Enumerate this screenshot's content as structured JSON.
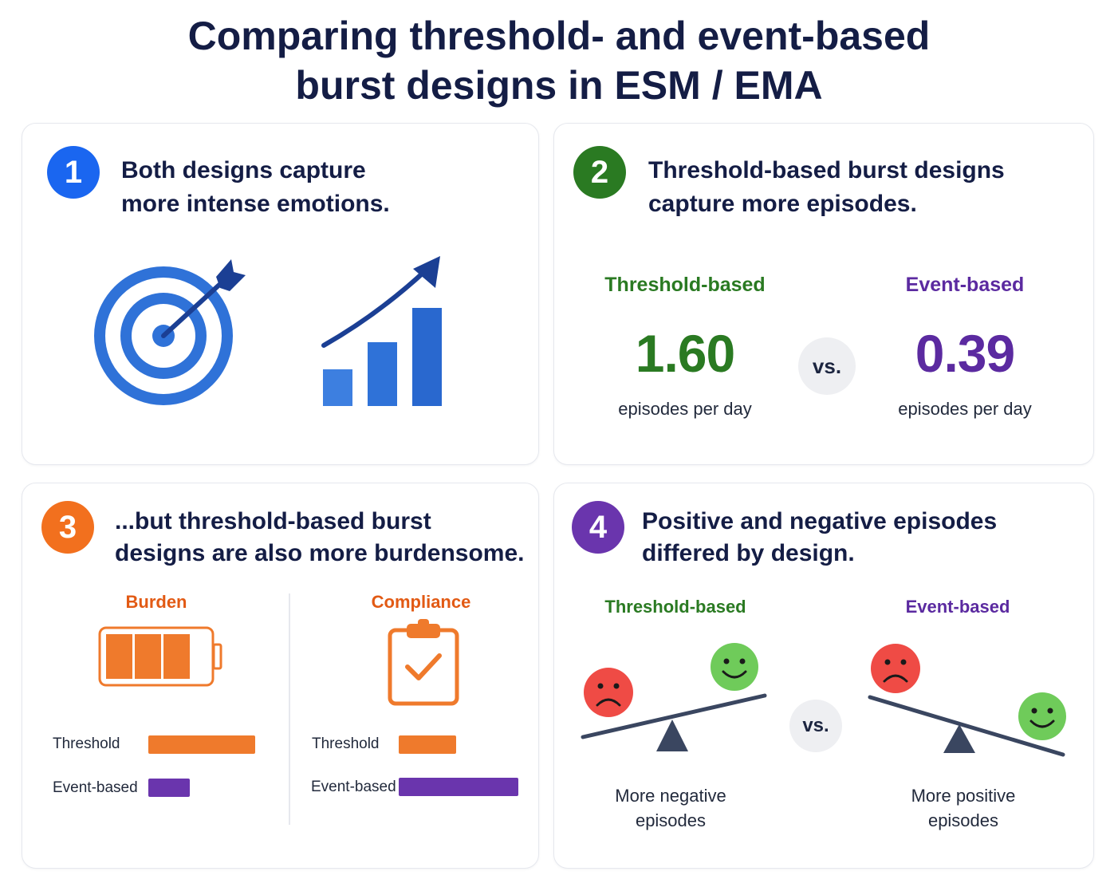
{
  "title": {
    "line1": "Comparing threshold- and event-based",
    "line2": "burst designs in ESM / EMA"
  },
  "panels": [
    {
      "number": "1",
      "color": "#1a66f0",
      "heading_line1": "Both designs capture",
      "heading_line2": "more intense emotions.",
      "icons": [
        "target-icon",
        "bar-chart-rising-icon"
      ]
    },
    {
      "number": "2",
      "color": "#2a7a22",
      "heading_line1": "Threshold-based burst designs",
      "heading_line2": "capture more episodes.",
      "left_label": "Threshold-based",
      "left_value": "1.60",
      "left_unit": "episodes per day",
      "vs": "vs.",
      "right_label": "Event-based",
      "right_value": "0.39",
      "right_unit": "episodes per day"
    },
    {
      "number": "3",
      "color": "#f2701e",
      "heading_line1": "...but threshold-based burst",
      "heading_line2": "designs are also more burdensome.",
      "burden_label": "Burden",
      "compliance_label": "Compliance",
      "burden_rows": [
        {
          "label": "Threshold",
          "level": 1.0,
          "color": "#ef7a2c"
        },
        {
          "label": "Event-based",
          "level": 0.39,
          "color": "#6a35ad"
        }
      ],
      "compliance_rows": [
        {
          "label": "Threshold",
          "level": 0.48,
          "color": "#ef7a2c"
        },
        {
          "label": "Event-based",
          "level": 1.0,
          "color": "#6a35ad"
        }
      ],
      "icons": [
        "battery-icon",
        "clipboard-check-icon"
      ]
    },
    {
      "number": "4",
      "color": "#6a35ad",
      "heading_line1": "Positive and negative episodes",
      "heading_line2": "differed by design.",
      "left_label": "Threshold-based",
      "right_label": "Event-based",
      "vs": "vs.",
      "left_caption_line1": "More negative",
      "left_caption_line2": "episodes",
      "right_caption_line1": "More positive",
      "right_caption_line2": "episodes",
      "icons": [
        "sad-face-icon",
        "happy-face-icon",
        "seesaw-icon"
      ]
    }
  ]
}
